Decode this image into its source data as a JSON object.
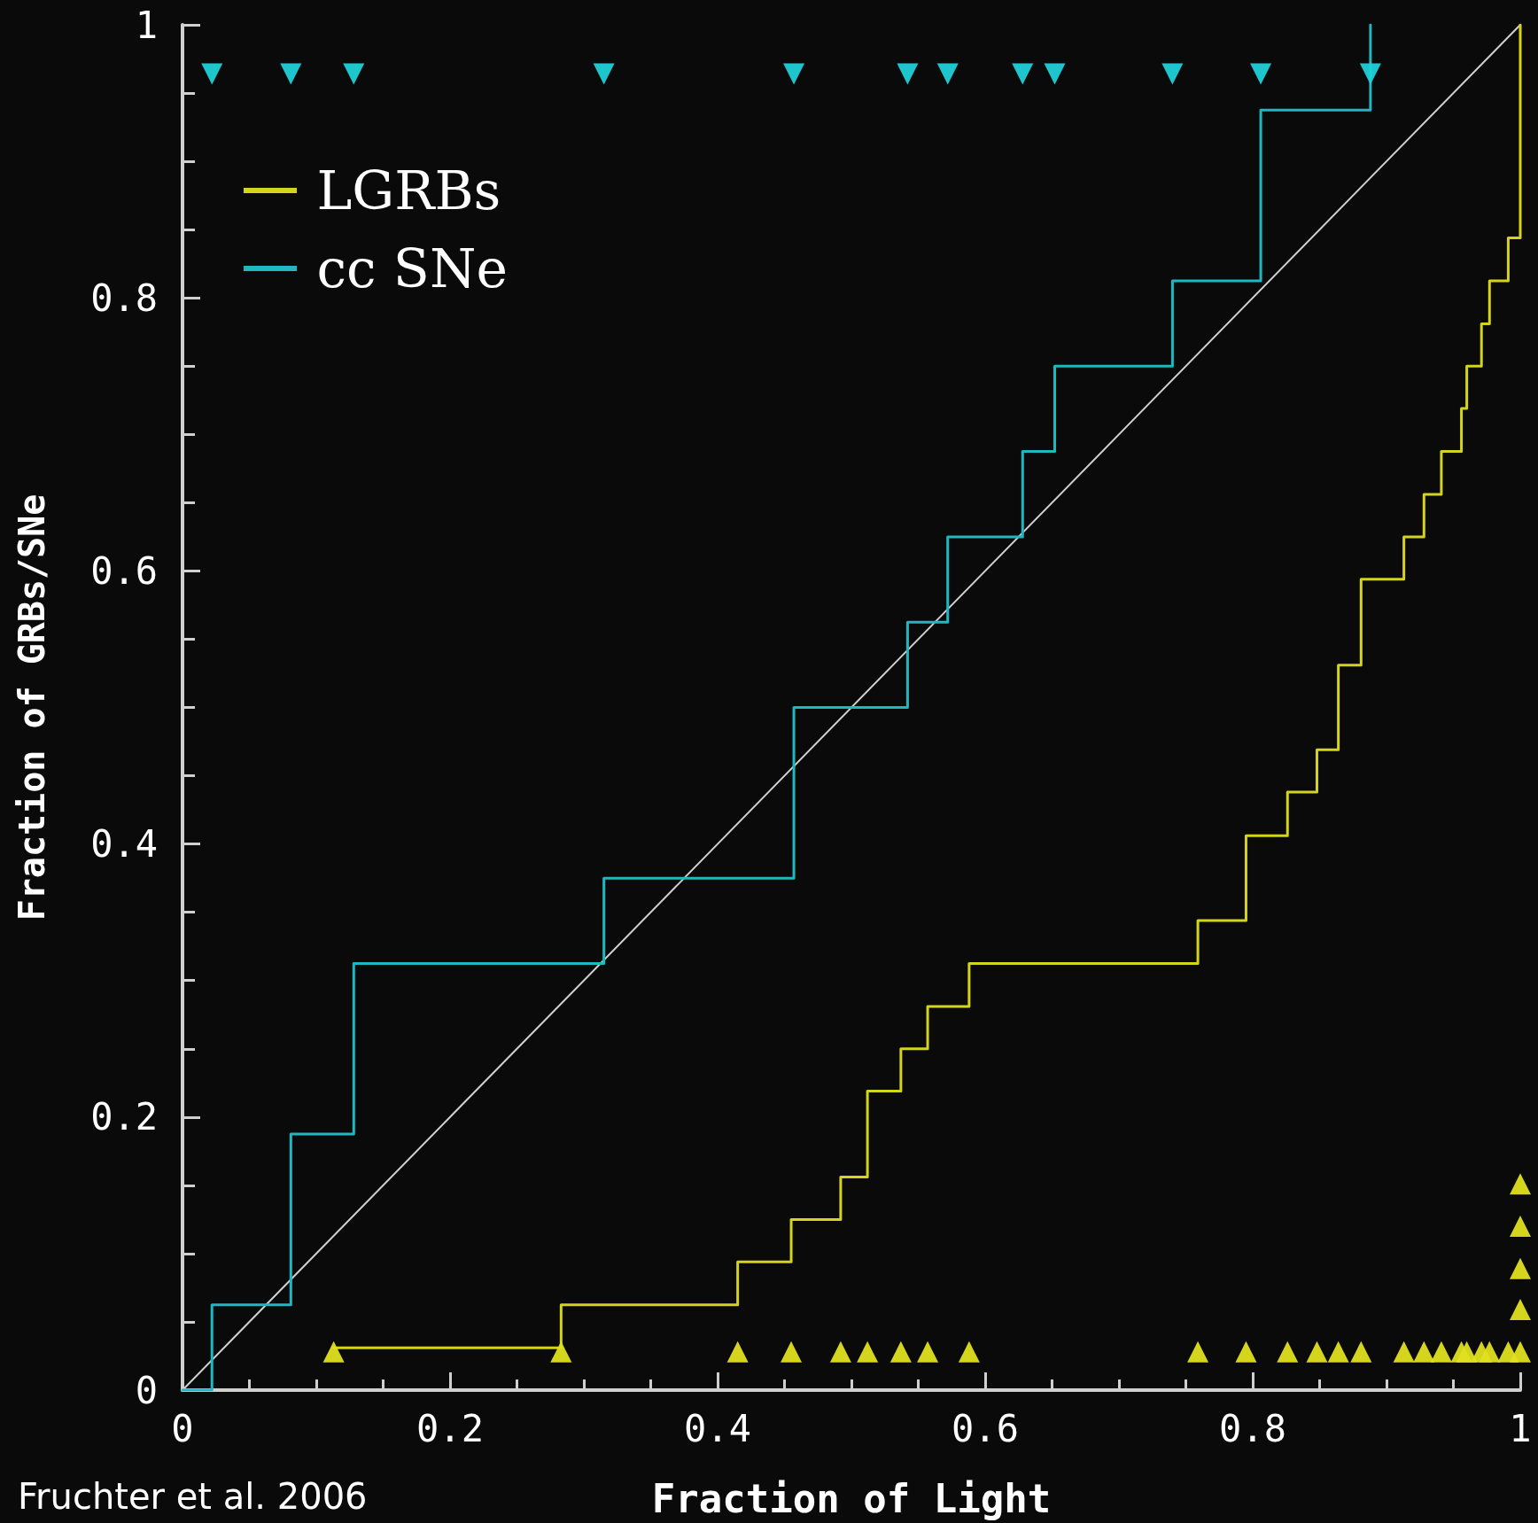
{
  "chart_data": {
    "type": "step",
    "xlabel": "Fraction of Light",
    "ylabel": "Fraction of GRBs/SNe",
    "xlim": [
      0,
      1
    ],
    "ylim": [
      0,
      1
    ],
    "xticks": [
      0,
      0.2,
      0.4,
      0.6,
      0.8,
      1
    ],
    "yticks": [
      0,
      0.2,
      0.4,
      0.6,
      0.8,
      1
    ],
    "grid": false,
    "legend": "top left",
    "marker": "none",
    "line_style": "solid",
    "annotations": [
      "Fruchter et al. 2006"
    ],
    "series": [
      {
        "name": "LGRBs",
        "color": "#d4d41c",
        "x": [
          0.113,
          0.283,
          0.415,
          0.455,
          0.492,
          0.512,
          0.537,
          0.557,
          0.588,
          0.759,
          0.795,
          0.826,
          0.848,
          0.864,
          0.881,
          0.913,
          0.928,
          0.941,
          0.956,
          0.96,
          0.971,
          0.977,
          0.991,
          1.0
        ],
        "values": [
          0.031,
          0.0625,
          0.094,
          0.125,
          0.156,
          0.219,
          0.25,
          0.281,
          0.3125,
          0.344,
          0.406,
          0.438,
          0.469,
          0.531,
          0.594,
          0.625,
          0.656,
          0.6875,
          0.719,
          0.75,
          0.781,
          0.8125,
          0.844,
          1.0
        ]
      },
      {
        "name": "cc SNe",
        "color": "#1fb8c0",
        "x": [
          0,
          0.022,
          0.081,
          0.128,
          0.315,
          0.457,
          0.542,
          0.572,
          0.628,
          0.652,
          0.74,
          0.806,
          0.888
        ],
        "values": [
          0,
          0.0625,
          0.1875,
          0.3125,
          0.375,
          0.5,
          0.5625,
          0.625,
          0.6875,
          0.75,
          0.8125,
          0.9375,
          1.0
        ]
      },
      {
        "type": "line",
        "color": "#d0d0d0",
        "x": [
          0,
          1
        ],
        "values": [
          0,
          1
        ]
      },
      {
        "type": "scatter",
        "marker": "triangle",
        "color": "#20d0d8",
        "x": [
          0.022,
          0.081,
          0.128,
          0.315,
          0.457,
          0.542,
          0.572,
          0.628,
          0.652,
          0.74,
          0.806,
          0.888
        ],
        "values": [
          0.964,
          0.964,
          0.964,
          0.964,
          0.964,
          0.964,
          0.964,
          0.964,
          0.964,
          0.964,
          0.964,
          0.964
        ]
      },
      {
        "type": "scatter",
        "marker": "triangle",
        "color": "#e0e020",
        "x": [
          0.113,
          0.283,
          0.415,
          0.455,
          0.492,
          0.512,
          0.537,
          0.557,
          0.588,
          0.759,
          0.795,
          0.826,
          0.848,
          0.864,
          0.881,
          0.913,
          0.928,
          0.941,
          0.956,
          0.96,
          0.971,
          0.977,
          0.991,
          1.0,
          1.0,
          1.0,
          1.0,
          1.0
        ],
        "values": [
          0.028,
          0.028,
          0.028,
          0.028,
          0.028,
          0.028,
          0.028,
          0.028,
          0.028,
          0.028,
          0.028,
          0.028,
          0.028,
          0.028,
          0.028,
          0.028,
          0.028,
          0.028,
          0.028,
          0.028,
          0.028,
          0.028,
          0.028,
          0.028,
          0.059,
          0.089,
          0.12,
          0.151
        ]
      }
    ]
  }
}
